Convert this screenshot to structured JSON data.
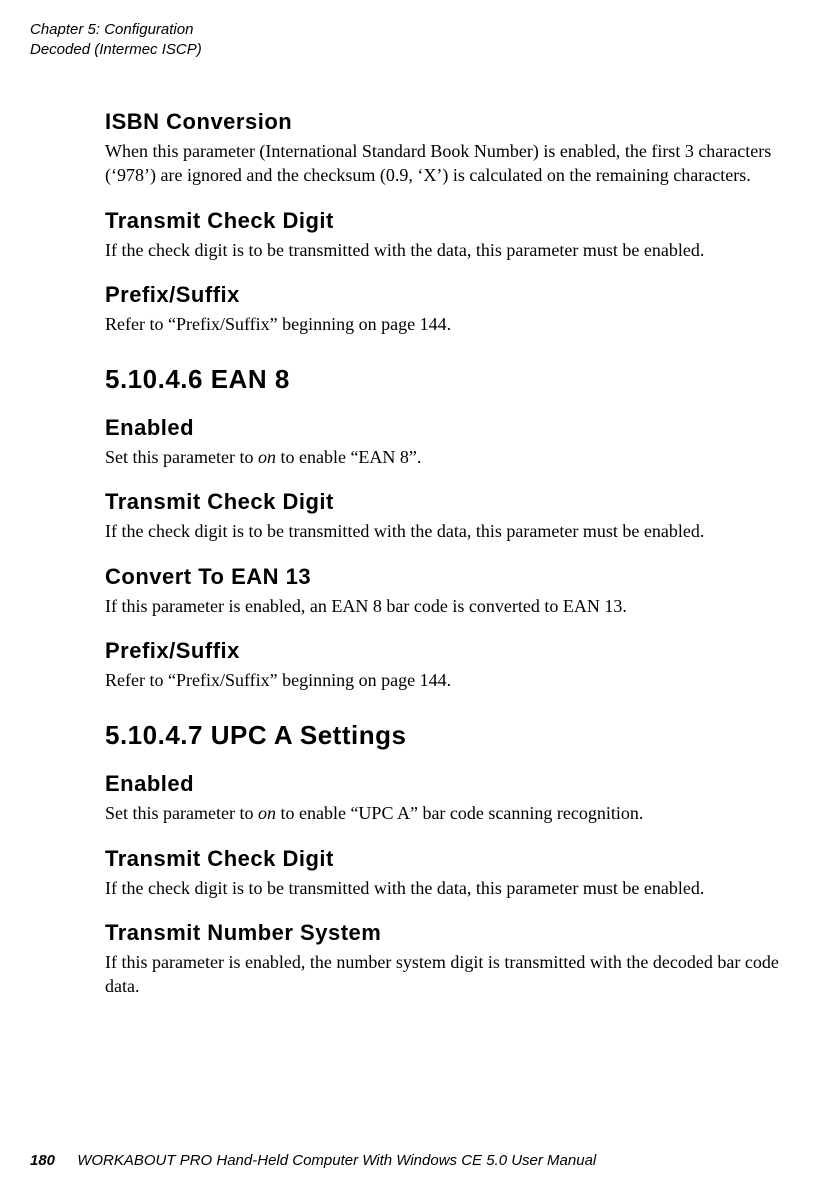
{
  "runningHead": {
    "line1": "Chapter 5: Configuration",
    "line2": "Decoded (Intermec ISCP)"
  },
  "sections": [
    {
      "heading": "ISBN Conversion",
      "level": "h3",
      "body": "When this parameter (International Standard Book Number) is enabled, the first 3 characters (‘978’) are ignored and the checksum (0.9, ‘X’) is calculated on the remaining characters."
    },
    {
      "heading": "Transmit Check Digit",
      "level": "h3",
      "body": "If the check digit is to be transmitted with the data, this parameter must be enabled."
    },
    {
      "heading": "Prefix/Suffix",
      "level": "h3",
      "body": "Refer to “Prefix/Suffix” beginning on page 144."
    },
    {
      "heading": "5.10.4.6   EAN 8",
      "level": "h2",
      "body": null
    },
    {
      "heading": "Enabled",
      "level": "h3",
      "body_html": "Set this parameter to <em>on</em> to enable “EAN 8”."
    },
    {
      "heading": "Transmit Check Digit",
      "level": "h3",
      "body": "If the check digit is to be transmitted with the data, this parameter must be enabled."
    },
    {
      "heading": "Convert To EAN 13",
      "level": "h3",
      "body": "If this parameter is enabled, an EAN 8 bar code is converted to EAN 13."
    },
    {
      "heading": "Prefix/Suffix",
      "level": "h3",
      "body": "Refer to “Prefix/Suffix” beginning on page 144."
    },
    {
      "heading": "5.10.4.7   UPC A Settings",
      "level": "h2",
      "body": null
    },
    {
      "heading": "Enabled",
      "level": "h3",
      "body_html": "Set this parameter to <em>on</em> to enable “UPC A” bar code scanning recognition."
    },
    {
      "heading": "Transmit Check Digit",
      "level": "h3",
      "body": "If the check digit is to be transmitted with the data, this parameter must be enabled."
    },
    {
      "heading": "Transmit Number System",
      "level": "h3",
      "body": "If this parameter is enabled, the number system digit is transmitted with the decoded bar code data."
    }
  ],
  "footer": {
    "pageNumber": "180",
    "text": "WORKABOUT PRO Hand-Held Computer With Windows CE 5.0 User Manual"
  }
}
